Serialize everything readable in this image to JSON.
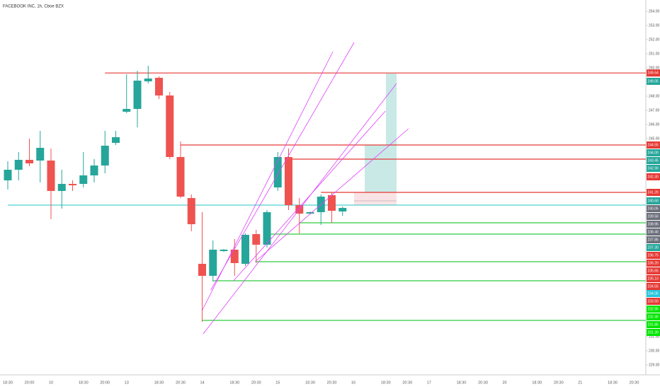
{
  "chart_data": {
    "type": "candlestick",
    "title": "FACEBOOK INC, 1h, Cboe BZX",
    "categories": [
      "18:30",
      null,
      "20:00",
      null,
      "10",
      null,
      null,
      "18:30",
      null,
      "20:00",
      null,
      "13",
      null,
      null,
      "18:30",
      null,
      "20:30",
      null,
      "14",
      null,
      null,
      "18:30",
      null,
      "20:30",
      null,
      "15",
      null,
      null,
      "18:30",
      null,
      "20:30",
      null,
      "16",
      null,
      null,
      "18:30",
      null,
      "20:30",
      null,
      "17",
      null,
      null,
      "18:30",
      null,
      "20:30",
      null,
      "20",
      null,
      null,
      "18:30",
      null,
      "20:30",
      null,
      "21",
      null,
      null,
      "18:30",
      null,
      "20:30"
    ],
    "open": [
      242.05,
      242.8,
      243.5,
      243.45,
      243.45,
      241.3,
      241.8,
      241.8,
      242.4,
      243.1,
      244.7,
      246.9,
      247.1,
      249.05,
      249.3,
      248.05,
      243.7,
      240.8,
      236.15,
      235.3,
      237.05,
      237.15,
      236.15,
      238.25,
      237.5,
      241.55,
      243.7,
      240.3,
      239.7,
      239.8,
      241.0,
      239.85,
      null,
      null,
      null,
      null,
      null,
      null,
      null,
      null,
      null,
      null,
      null,
      null,
      null,
      null,
      null,
      null,
      null,
      null,
      null,
      null,
      null,
      null,
      null,
      null,
      null,
      null,
      null
    ],
    "high": [
      243.4,
      244.05,
      245.0,
      245.55,
      244.3,
      242.8,
      242.05,
      244.05,
      243.55,
      245.55,
      245.55,
      249.55,
      249.8,
      250.15,
      249.4,
      248.3,
      244.8,
      241.05,
      239.8,
      237.8,
      237.2,
      237.9,
      238.3,
      238.55,
      239.95,
      244.05,
      244.3,
      240.8,
      239.85,
      241.05,
      241.2,
      240.2,
      null,
      null,
      null,
      null,
      null,
      null,
      null,
      null,
      null,
      null,
      null,
      null,
      null,
      null,
      null,
      null,
      null,
      null,
      null,
      null,
      null,
      null,
      null,
      null,
      null,
      null,
      null
    ],
    "low": [
      241.4,
      242.05,
      243.05,
      241.9,
      239.3,
      240.05,
      241.3,
      241.55,
      241.9,
      242.55,
      244.55,
      246.8,
      245.8,
      248.9,
      247.8,
      243.55,
      240.8,
      238.45,
      232.05,
      234.9,
      237.0,
      235.3,
      236.0,
      236.2,
      237.3,
      241.3,
      239.95,
      238.3,
      239.65,
      238.9,
      239.05,
      239.55,
      null,
      null,
      null,
      null,
      null,
      null,
      null,
      null,
      null,
      null,
      null,
      null,
      null,
      null,
      null,
      null,
      null,
      null,
      null,
      null,
      null,
      null,
      null,
      null,
      null,
      null,
      null
    ],
    "close": [
      242.8,
      243.5,
      243.25,
      244.35,
      241.3,
      241.8,
      241.7,
      242.4,
      243.1,
      244.5,
      245.1,
      247.1,
      249.1,
      249.25,
      248.05,
      243.7,
      240.9,
      238.95,
      235.3,
      237.15,
      237.15,
      236.2,
      238.2,
      237.5,
      239.8,
      243.7,
      240.3,
      239.7,
      239.8,
      240.9,
      239.9,
      240.1,
      null,
      null,
      null,
      null,
      null,
      null,
      null,
      null,
      null,
      null,
      null,
      null,
      null,
      null,
      null,
      null,
      null,
      null,
      null,
      null,
      null,
      null,
      null,
      null,
      null,
      null,
      null
    ],
    "up_color": "#26a69a",
    "down_color": "#ef5350",
    "ylim": [
      228.3,
      254.8
    ],
    "yticks": [
      {
        "value": 254,
        "label": "254.00"
      },
      {
        "value": 253,
        "label": "253.00"
      },
      {
        "value": 252,
        "label": "252.00"
      },
      {
        "value": 251,
        "label": "251.00"
      },
      {
        "value": 250,
        "label": "250.00"
      },
      {
        "value": 248,
        "label": "248.00"
      },
      {
        "value": 247,
        "label": "247.00"
      },
      {
        "value": 246,
        "label": "246.00"
      },
      {
        "value": 245,
        "label": "245.00"
      },
      {
        "value": 231,
        "label": "231.00"
      },
      {
        "value": 230,
        "label": "230.00"
      },
      {
        "value": 229,
        "label": "229.00"
      }
    ],
    "grid": false,
    "levels": [
      {
        "price": 249.64,
        "color": "#e53935",
        "start": 9
      },
      {
        "price": 244.55,
        "color": "#e53935",
        "start": 16
      },
      {
        "price": 243.55,
        "color": "#e53935",
        "start": 26
      },
      {
        "price": 241.2,
        "color": "#e53935",
        "start": 29
      },
      {
        "price": 240.3,
        "color": "#4dd0d0",
        "start": 0
      },
      {
        "price": 239.05,
        "color": "#2ecc40",
        "start": 27
      },
      {
        "price": 238.25,
        "color": "#2ecc40",
        "start": 24
      },
      {
        "price": 236.3,
        "color": "#2ecc40",
        "start": 23
      },
      {
        "price": 234.95,
        "color": "#2ecc40",
        "start": 19
      },
      {
        "price": 232.15,
        "color": "#2ecc40",
        "start": 18
      }
    ],
    "trendlines": [
      {
        "x": [
          18.03,
          30.1
        ],
        "y": [
          232.9,
          251.15
        ],
        "color": "#e040fb"
      },
      {
        "x": [
          18.8,
          32.07
        ],
        "y": [
          234.3,
          251.8
        ],
        "color": "#e040fb"
      },
      {
        "x": [
          18.1,
          36.0
        ],
        "y": [
          231.2,
          248.9
        ],
        "color": "#e040fb"
      },
      {
        "x": [
          20.9,
          34.97
        ],
        "y": [
          234.95,
          246.95
        ],
        "color": "#e040fb"
      },
      {
        "x": [
          22.9,
          37.1
        ],
        "y": [
          236.3,
          245.7
        ],
        "color": "#e040fb"
      }
    ],
    "price_tags": [
      {
        "value": 249.64,
        "label": "249.64",
        "color": "#e53935"
      },
      {
        "value": 249.05,
        "label": "249.05",
        "color": "#26a69a"
      },
      {
        "value": 244.55,
        "label": "244.55",
        "color": "#e53935"
      },
      {
        "value": 244.0,
        "label": "244.00",
        "color": "#26a69a"
      },
      {
        "value": 243.45,
        "label": "243.45",
        "color": "#26a69a"
      },
      {
        "value": 242.9,
        "label": "242.90",
        "color": "#26a69a"
      },
      {
        "value": 242.3,
        "label": "242.30",
        "color": "#e53935"
      },
      {
        "value": 241.2,
        "label": "241.20",
        "color": "#e53935"
      },
      {
        "value": 240.6,
        "label": "240.60",
        "color": "#26a69a"
      },
      {
        "value": 240.05,
        "label": "240.05",
        "color": "#6b6f7a"
      },
      {
        "value": 239.5,
        "label": "239.50",
        "color": "#6b6f7a"
      },
      {
        "value": 238.95,
        "label": "238.95",
        "color": "#6b6f7a"
      },
      {
        "value": 238.4,
        "label": "238.40",
        "color": "#6b6f7a"
      },
      {
        "value": 237.85,
        "label": "237.85",
        "color": "#6b6f7a"
      },
      {
        "value": 237.3,
        "label": "237.30",
        "color": "#26a69a"
      },
      {
        "value": 236.75,
        "label": "236.75",
        "color": "#e53935"
      },
      {
        "value": 236.2,
        "label": "236.20",
        "color": "#e53935"
      },
      {
        "value": 235.65,
        "label": "235.65",
        "color": "#e53935"
      },
      {
        "value": 235.1,
        "label": "235.10",
        "color": "#e53935"
      },
      {
        "value": 234.55,
        "label": "234.55",
        "color": "#e53935"
      },
      {
        "value": 234.05,
        "label": "234.05",
        "color": "#26c6da"
      },
      {
        "value": 233.5,
        "label": "233.50",
        "color": "#e53935"
      },
      {
        "value": 232.95,
        "label": "232.95",
        "color": "#00e600"
      },
      {
        "value": 232.4,
        "label": "232.40",
        "color": "#00e600"
      },
      {
        "value": 231.85,
        "label": "231.85",
        "color": "#00e600"
      },
      {
        "value": 231.3,
        "label": "231.30",
        "color": "#00e600"
      }
    ]
  }
}
